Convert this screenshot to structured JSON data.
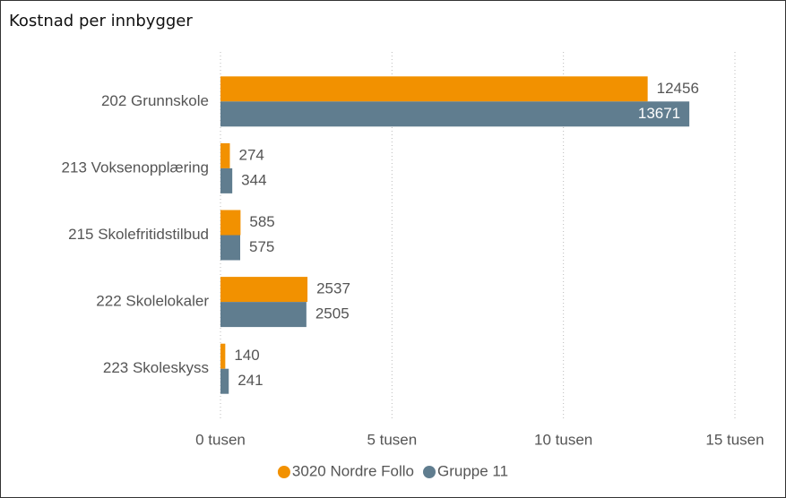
{
  "chart_data": {
    "type": "barh",
    "title": "Kostnad per innbygger",
    "categories": [
      "202 Grunnskole",
      "213 Voksenopplæring",
      "215 Skolefritidstilbud",
      "222 Skolelokaler",
      "223 Skoleskyss"
    ],
    "series": [
      {
        "name": "3020 Nordre Follo",
        "color": "#f29100",
        "values": [
          12456,
          274,
          585,
          2537,
          140
        ]
      },
      {
        "name": "Gruppe 11",
        "color": "#607d8f",
        "values": [
          13671,
          344,
          575,
          2505,
          241
        ]
      }
    ],
    "xlim": [
      0,
      15000
    ],
    "xticks": [
      {
        "value": 0,
        "label": "0 tusen"
      },
      {
        "value": 5000,
        "label": "5 tusen"
      },
      {
        "value": 10000,
        "label": "10 tusen"
      },
      {
        "value": 15000,
        "label": "15 tusen"
      }
    ],
    "grid": true,
    "legend": "bottom"
  }
}
